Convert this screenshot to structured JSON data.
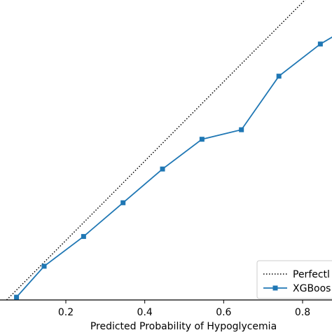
{
  "chart_data": {
    "type": "line",
    "xlabel": "Predicted Probability of Hypoglycemia",
    "ylabel": "",
    "title": "",
    "x_ticks": [
      "0.2",
      "0.4",
      "0.6",
      "0.8"
    ],
    "x_tick_values": [
      0.2,
      0.4,
      0.6,
      0.8
    ],
    "xlim": [
      0.05,
      0.9
    ],
    "ylim": [
      0.05,
      0.9
    ],
    "grid": false,
    "legend_position": "bottom-right",
    "legend": [
      "Perfectl",
      "XGBoos"
    ],
    "series": [
      {
        "name": "Perfectl",
        "style": "dotted",
        "color": "#000000",
        "x": [
          0.0,
          1.0
        ],
        "y": [
          0.0,
          1.0
        ]
      },
      {
        "name": "XGBoos",
        "style": "solid",
        "marker": "square",
        "color": "#1f77b4",
        "x": [
          0.075,
          0.145,
          0.245,
          0.345,
          0.445,
          0.545,
          0.645,
          0.74,
          0.845,
          0.905
        ],
        "y": [
          0.057,
          0.135,
          0.21,
          0.295,
          0.38,
          0.455,
          0.479,
          0.614,
          0.695,
          0.73
        ]
      }
    ]
  }
}
